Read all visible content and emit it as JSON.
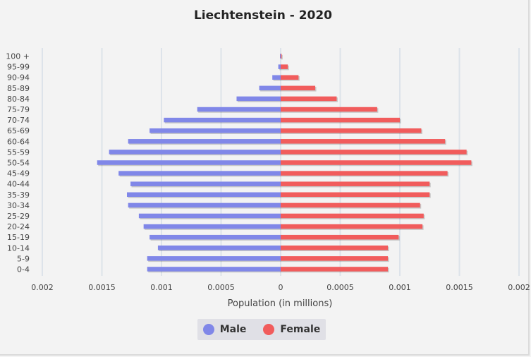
{
  "chart_data": {
    "type": "bar",
    "orientation": "horizontal",
    "title": "Liechtenstein - 2020",
    "xlabel": "Population (in millions)",
    "ylabel": "",
    "xlim": [
      -0.002,
      0.002
    ],
    "x_ticks": [
      "0.002",
      "0.0015",
      "0.001",
      "0.0005",
      "0",
      "0.0005",
      "0.001",
      "0.0015",
      "0.002"
    ],
    "grid": true,
    "legend_position": "bottom",
    "categories": [
      "100 +",
      "95-99",
      "90-94",
      "85-89",
      "80-84",
      "75-79",
      "70-74",
      "65-69",
      "60-64",
      "55-59",
      "50-54",
      "45-49",
      "40-44",
      "35-39",
      "30-34",
      "25-29",
      "20-24",
      "15-19",
      "10-14",
      "5-9",
      "0-4"
    ],
    "series": [
      {
        "name": "Male",
        "color": "#8087e8",
        "values": [
          3e-06,
          2e-05,
          7e-05,
          0.00018,
          0.00037,
          0.0007,
          0.00098,
          0.0011,
          0.00128,
          0.00144,
          0.00154,
          0.00136,
          0.00126,
          0.00129,
          0.00128,
          0.00119,
          0.00115,
          0.0011,
          0.00103,
          0.00112,
          0.00112
        ]
      },
      {
        "name": "Female",
        "color": "#f15c5c",
        "values": [
          8e-06,
          6e-05,
          0.00015,
          0.00029,
          0.00047,
          0.00081,
          0.001,
          0.00118,
          0.00138,
          0.00156,
          0.0016,
          0.0014,
          0.00125,
          0.00125,
          0.00117,
          0.0012,
          0.00119,
          0.00099,
          0.0009,
          0.0009,
          0.0009
        ]
      }
    ]
  }
}
